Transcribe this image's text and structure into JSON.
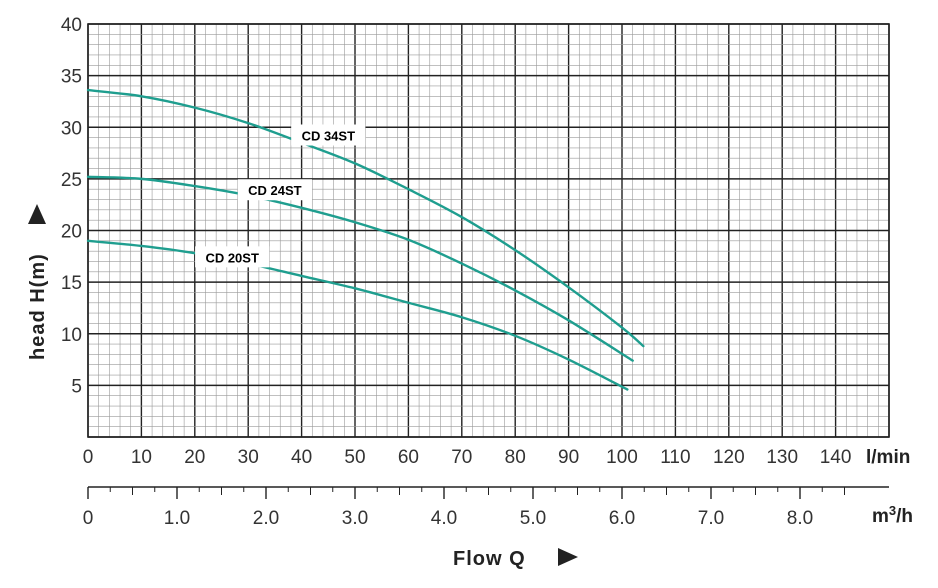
{
  "chart_data": {
    "type": "line",
    "title": "",
    "xlabel": "Flow Q",
    "ylabel": "head H(m)",
    "x_unit": "l/min",
    "x2_unit": "m3/h",
    "xlim": [
      0,
      150
    ],
    "ylim": [
      0,
      40
    ],
    "x_ticks": [
      "0",
      "10",
      "20",
      "30",
      "40",
      "50",
      "60",
      "70",
      "80",
      "90",
      "100",
      "110",
      "120",
      "130",
      "140"
    ],
    "x2_ticks": [
      "0",
      "1.0",
      "2.0",
      "3.0",
      "4.0",
      "5.0",
      "6.0",
      "7.0",
      "8.0"
    ],
    "y_ticks": [
      "5",
      "10",
      "15",
      "20",
      "25",
      "30",
      "35",
      "40"
    ],
    "grid": true,
    "line_color": "#1f9e8f",
    "series": [
      {
        "name": "CD 34ST",
        "x": [
          0,
          10,
          20,
          30,
          40,
          50,
          60,
          70,
          80,
          90,
          100,
          104
        ],
        "y": [
          33.6,
          33.0,
          31.9,
          30.4,
          28.5,
          26.5,
          24.0,
          21.3,
          18.1,
          14.5,
          10.6,
          8.8
        ]
      },
      {
        "name": "CD 24ST",
        "x": [
          0,
          10,
          20,
          30,
          40,
          50,
          60,
          70,
          80,
          90,
          102
        ],
        "y": [
          25.2,
          25.0,
          24.3,
          23.4,
          22.2,
          20.8,
          19.1,
          16.8,
          14.2,
          11.3,
          7.4
        ]
      },
      {
        "name": "CD 20ST",
        "x": [
          0,
          10,
          20,
          30,
          40,
          50,
          60,
          70,
          80,
          90,
          101
        ],
        "y": [
          19.0,
          18.5,
          17.8,
          16.8,
          15.6,
          14.4,
          13.0,
          11.6,
          9.8,
          7.5,
          4.6
        ]
      }
    ]
  }
}
